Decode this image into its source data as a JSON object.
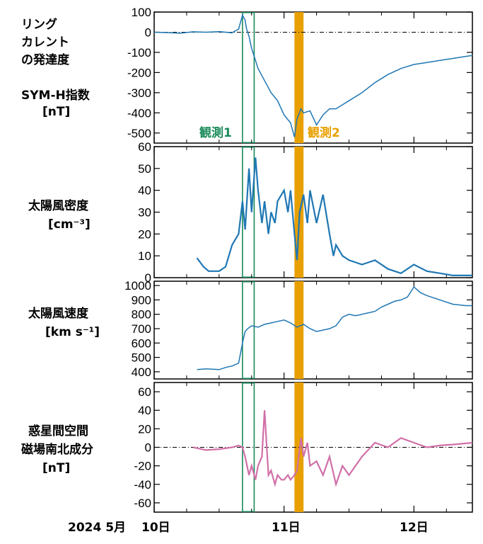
{
  "chart_data": [
    {
      "type": "line",
      "ylabel_lines": [
        "リング",
        "カレント",
        "の発達度",
        "SYM-H指数",
        "[nT]"
      ],
      "ylim": [
        -550,
        100
      ],
      "yticks": [
        100,
        0,
        -100,
        -200,
        -300,
        -400,
        -500
      ],
      "ytick_labels": [
        "100",
        "0",
        "-100",
        "-200",
        "-300",
        "-400",
        "-500"
      ],
      "zero_line": true,
      "color": "#1f77b4",
      "annotations": [
        {
          "text": "観測1",
          "color": "#1a8a5a"
        },
        {
          "text": "観測2",
          "color": "#e8a000"
        }
      ],
      "series": [
        {
          "x": [
            0,
            0.1,
            0.2,
            0.3,
            0.4,
            0.5,
            0.6,
            0.62,
            0.65,
            0.68,
            0.7,
            0.71,
            0.73,
            0.75,
            0.78,
            0.8,
            0.85,
            0.9,
            0.95,
            1.0,
            1.05,
            1.08,
            1.1,
            1.13,
            1.15,
            1.2,
            1.25,
            1.3,
            1.35,
            1.4,
            1.45,
            1.5,
            1.6,
            1.7,
            1.8,
            1.9,
            2.0,
            2.1,
            2.2,
            2.3,
            2.4,
            2.45
          ],
          "y": [
            0,
            -2,
            -5,
            2,
            0,
            3,
            -3,
            5,
            15,
            85,
            60,
            20,
            -20,
            -80,
            -140,
            -180,
            -240,
            -300,
            -340,
            -410,
            -450,
            -520,
            -430,
            -380,
            -400,
            -390,
            -460,
            -410,
            -380,
            -380,
            -360,
            -340,
            -300,
            -250,
            -210,
            -180,
            -160,
            -150,
            -140,
            -130,
            -120,
            -115
          ]
        }
      ]
    },
    {
      "type": "line",
      "ylabel_lines": [
        "太陽風密度",
        "[cm⁻³]"
      ],
      "ylim": [
        0,
        60
      ],
      "yticks": [
        0,
        10,
        20,
        30,
        40,
        50,
        60
      ],
      "ytick_labels": [
        "0",
        "10",
        "20",
        "30",
        "40",
        "50",
        "60"
      ],
      "color": "#1f77b4",
      "series": [
        {
          "x": [
            0.33,
            0.38,
            0.42,
            0.5,
            0.55,
            0.6,
            0.65,
            0.68,
            0.7,
            0.73,
            0.75,
            0.78,
            0.8,
            0.83,
            0.85,
            0.88,
            0.9,
            0.93,
            0.95,
            1.0,
            1.03,
            1.05,
            1.08,
            1.1,
            1.12,
            1.15,
            1.18,
            1.2,
            1.25,
            1.3,
            1.35,
            1.38,
            1.4,
            1.45,
            1.5,
            1.6,
            1.7,
            1.8,
            1.9,
            2.0,
            2.1,
            2.2,
            2.3,
            2.45
          ],
          "y": [
            9,
            5,
            3,
            3,
            5,
            15,
            20,
            35,
            22,
            50,
            30,
            55,
            40,
            25,
            35,
            20,
            30,
            25,
            35,
            40,
            30,
            40,
            20,
            8,
            30,
            38,
            25,
            40,
            25,
            38,
            20,
            10,
            15,
            10,
            8,
            6,
            8,
            4,
            2,
            6,
            3,
            2,
            1,
            1
          ]
        }
      ]
    },
    {
      "type": "line",
      "ylabel_lines": [
        "太陽風速度",
        "[km s⁻¹]"
      ],
      "ylim": [
        350,
        1030
      ],
      "yticks": [
        400,
        500,
        600,
        700,
        800,
        900,
        1000
      ],
      "ytick_labels": [
        "400",
        "500",
        "600",
        "700",
        "800",
        "900",
        "1000"
      ],
      "color": "#1f77b4",
      "series": [
        {
          "x": [
            0.33,
            0.4,
            0.5,
            0.55,
            0.6,
            0.65,
            0.68,
            0.7,
            0.72,
            0.75,
            0.8,
            0.85,
            0.9,
            0.95,
            1.0,
            1.05,
            1.1,
            1.15,
            1.2,
            1.25,
            1.3,
            1.35,
            1.4,
            1.45,
            1.5,
            1.55,
            1.6,
            1.65,
            1.7,
            1.75,
            1.8,
            1.85,
            1.9,
            1.95,
            2.0,
            2.05,
            2.1,
            2.2,
            2.3,
            2.4,
            2.45
          ],
          "y": [
            415,
            420,
            415,
            430,
            440,
            460,
            600,
            680,
            700,
            720,
            710,
            730,
            740,
            750,
            760,
            740,
            710,
            730,
            700,
            680,
            690,
            700,
            720,
            780,
            800,
            790,
            800,
            810,
            820,
            850,
            870,
            890,
            900,
            920,
            990,
            950,
            930,
            900,
            870,
            860,
            860
          ]
        }
      ]
    },
    {
      "type": "line",
      "ylabel_lines": [
        "惑星間空間",
        "磁場南北成分",
        "[nT]"
      ],
      "ylim": [
        -70,
        70
      ],
      "yticks": [
        60,
        40,
        20,
        0,
        -20,
        -40,
        -60
      ],
      "ytick_labels": [
        "60",
        "40",
        "20",
        "0",
        "-20",
        "-40",
        "-60"
      ],
      "zero_line": true,
      "color": "#d070a8",
      "series": [
        {
          "x": [
            0.3,
            0.4,
            0.5,
            0.6,
            0.65,
            0.68,
            0.7,
            0.73,
            0.75,
            0.78,
            0.8,
            0.83,
            0.85,
            0.88,
            0.9,
            0.93,
            0.95,
            0.98,
            1.0,
            1.03,
            1.05,
            1.08,
            1.1,
            1.13,
            1.15,
            1.18,
            1.2,
            1.25,
            1.3,
            1.35,
            1.4,
            1.45,
            1.5,
            1.6,
            1.7,
            1.8,
            1.9,
            2.0,
            2.1,
            2.2,
            2.3,
            2.45
          ],
          "y": [
            0,
            -3,
            -2,
            0,
            2,
            0,
            -10,
            -30,
            -20,
            -35,
            -20,
            -10,
            40,
            -30,
            -25,
            -40,
            -30,
            -35,
            -35,
            -30,
            -35,
            -30,
            -25,
            10,
            -10,
            5,
            -20,
            -15,
            -30,
            -10,
            -40,
            -20,
            -30,
            -10,
            5,
            0,
            10,
            5,
            0,
            2,
            3,
            5
          ]
        }
      ]
    }
  ],
  "x_axis": {
    "range": [
      0,
      2.45
    ],
    "day_ticks": [
      0,
      1,
      2
    ],
    "minor_ticks": [
      0.25,
      0.5,
      0.75,
      1.25,
      1.5,
      1.75,
      2.25
    ],
    "prefix": "2024 5月",
    "day_labels": [
      "10日",
      "11日",
      "12日"
    ]
  },
  "highlights": {
    "obs1": {
      "start": 0.68,
      "end": 0.77,
      "color": "#1a8a5a"
    },
    "obs2": {
      "start": 1.08,
      "end": 1.15,
      "color": "#e8a000"
    }
  }
}
